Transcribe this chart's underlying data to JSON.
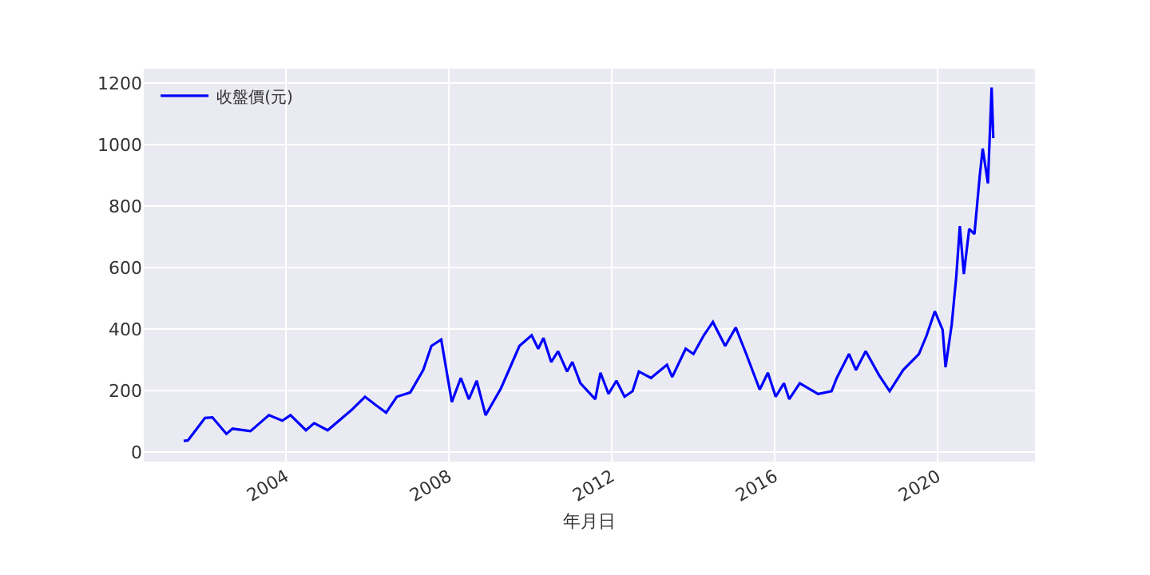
{
  "chart_data": {
    "type": "line",
    "xlabel": "年月日",
    "legend": "top left",
    "grid": true,
    "marker": "none",
    "line_style": "solid",
    "x": [
      "2001-07-01",
      "2001-08-08",
      "2002-01-08",
      "2002-03-15",
      "2002-07-19",
      "2002-09-12",
      "2003-02-20",
      "2003-08-04",
      "2003-12-02",
      "2004-02-14",
      "2004-07-01",
      "2004-09-13",
      "2005-01-12",
      "2005-08-15",
      "2005-12-13",
      "2006-03-15",
      "2006-06-20",
      "2006-09-24",
      "2007-01-23",
      "2007-05-19",
      "2007-07-31",
      "2007-10-27",
      "2008-01-30",
      "2008-04-20",
      "2008-07-01",
      "2008-09-09",
      "2008-11-28",
      "2009-04-13",
      "2009-07-16",
      "2009-09-27",
      "2010-01-15",
      "2010-03-15",
      "2010-05-01",
      "2010-07-09",
      "2010-09-09",
      "2010-11-28",
      "2011-01-15",
      "2011-03-28",
      "2011-08-08",
      "2011-09-24",
      "2011-12-05",
      "2012-02-14",
      "2012-04-27",
      "2012-07-08",
      "2012-09-02",
      "2012-12-20",
      "2013-05-12",
      "2013-06-28",
      "2013-10-27",
      "2014-01-05",
      "2014-04-08",
      "2014-06-28",
      "2014-10-16",
      "2015-01-19",
      "2015-04-23",
      "2015-08-22",
      "2015-11-03",
      "2016-01-12",
      "2016-03-26",
      "2016-05-12",
      "2016-08-15",
      "2017-01-26",
      "2017-05-27",
      "2017-07-13",
      "2017-10-30",
      "2018-01-01",
      "2018-03-29",
      "2018-07-27",
      "2018-10-30",
      "2019-02-28",
      "2019-07-19",
      "2019-09-27",
      "2019-12-09",
      "2020-02-17",
      "2020-03-14",
      "2020-05-08",
      "2020-06-18",
      "2020-07-20",
      "2020-08-25",
      "2020-10-12",
      "2020-11-28",
      "2021-01-15",
      "2021-02-10",
      "2021-03-29",
      "2021-05-01",
      "2021-05-16"
    ],
    "series": [
      {
        "name": "收盤價(元)",
        "color": "#0000ff",
        "values": [
          36,
          38,
          111,
          113,
          59,
          76,
          68,
          120,
          102,
          120,
          71,
          94,
          71,
          137,
          180,
          154,
          128,
          180,
          194,
          267,
          345,
          366,
          163,
          241,
          172,
          232,
          120,
          206,
          284,
          345,
          380,
          336,
          371,
          293,
          328,
          262,
          293,
          224,
          172,
          258,
          189,
          232,
          180,
          198,
          262,
          241,
          284,
          244,
          336,
          319,
          380,
          423,
          345,
          405,
          319,
          203,
          258,
          180,
          224,
          172,
          224,
          189,
          198,
          241,
          319,
          267,
          328,
          250,
          198,
          267,
          319,
          380,
          458,
          397,
          276,
          414,
          570,
          735,
          579,
          726,
          709,
          900,
          987,
          874,
          1186,
          1021
        ]
      }
    ],
    "xlim": [
      "2000-07-08",
      "2022-05-25"
    ],
    "xticks": [
      {
        "value": "2004-01-01",
        "label": "2004"
      },
      {
        "value": "2008-01-01",
        "label": "2008"
      },
      {
        "value": "2012-01-01",
        "label": "2012"
      },
      {
        "value": "2016-01-01",
        "label": "2016"
      },
      {
        "value": "2020-01-01",
        "label": "2020"
      }
    ],
    "ylim": [
      -31,
      1247
    ],
    "yticks": [
      0,
      200,
      400,
      600,
      800,
      1000,
      1200
    ]
  }
}
